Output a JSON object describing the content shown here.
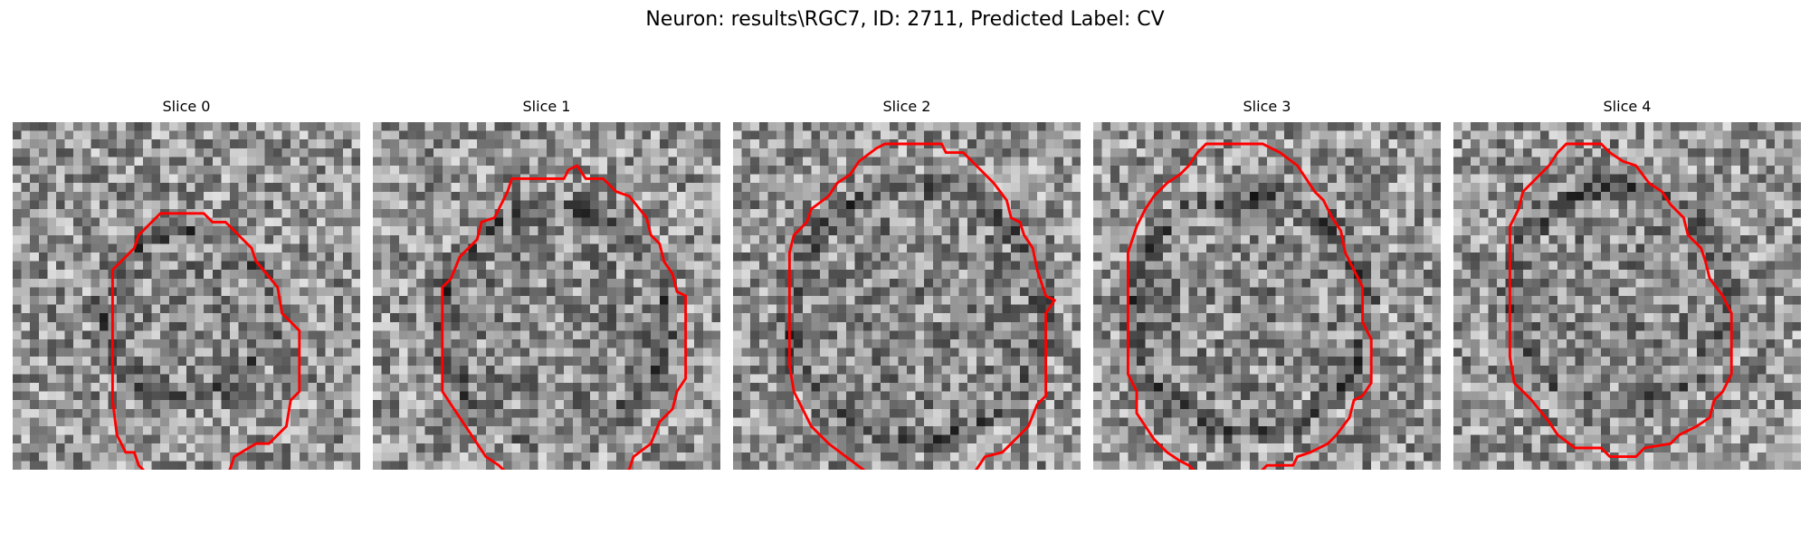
{
  "figure": {
    "title": "Neuron: results\\RGC7, ID: 2711, Predicted Label: CV"
  },
  "slices": [
    {
      "title": "Slice 0"
    },
    {
      "title": "Slice 1"
    },
    {
      "title": "Slice 2"
    },
    {
      "title": "Slice 3"
    },
    {
      "title": "Slice 4"
    }
  ],
  "colors": {
    "contour": "#ff0000",
    "background": "#ffffff"
  }
}
